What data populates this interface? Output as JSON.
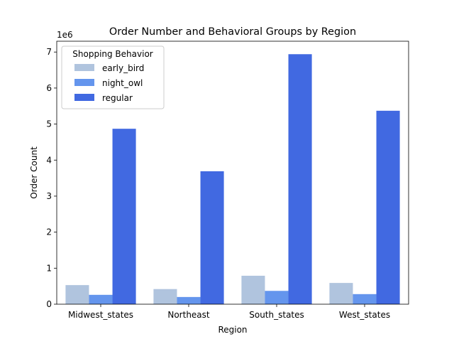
{
  "chart_data": {
    "type": "bar",
    "title": "Order Number and Behavioral Groups by Region",
    "xlabel": "Region",
    "ylabel": "Order Count",
    "y_offset_label": "1e6",
    "ylim": [
      0,
      7300000
    ],
    "yticks": [
      0,
      1,
      2,
      3,
      4,
      5,
      6,
      7
    ],
    "ytick_multiplier": 1000000,
    "categories": [
      "Midwest_states",
      "Northeast",
      "South_states",
      "West_states"
    ],
    "series": [
      {
        "name": "early_bird",
        "color": "#b0c4de",
        "values": [
          530000,
          420000,
          790000,
          590000
        ]
      },
      {
        "name": "night_owl",
        "color": "#6495ed",
        "values": [
          260000,
          200000,
          370000,
          280000
        ]
      },
      {
        "name": "regular",
        "color": "#4169e1",
        "values": [
          4870000,
          3690000,
          6940000,
          5370000
        ]
      }
    ],
    "legend": {
      "title": "Shopping Behavior",
      "placement": "top-left"
    },
    "grid": false
  }
}
